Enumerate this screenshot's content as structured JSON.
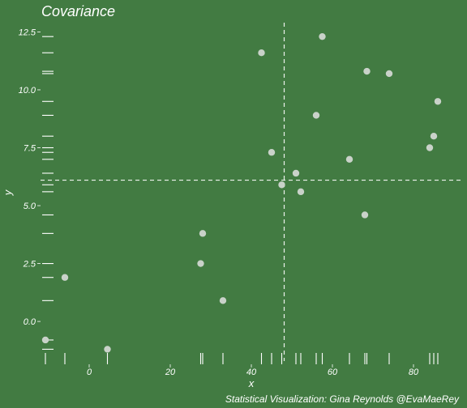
{
  "chart_data": {
    "type": "scatter",
    "title": "Covariance",
    "xlabel": "x",
    "ylabel": "y",
    "caption": "Statistical Visualization: Gina Reynolds @EvaMaeRey",
    "xlim": [
      -12,
      92
    ],
    "ylim": [
      -1.5,
      12.9
    ],
    "x_ticks": [
      0,
      20,
      40,
      60,
      80
    ],
    "y_ticks": [
      0.0,
      2.5,
      5.0,
      7.5,
      10.0,
      12.5
    ],
    "y_tick_labels": [
      "0.0",
      "2.5",
      "5.0",
      "7.5",
      "10.0",
      "12.5"
    ],
    "grid": false,
    "rug": true,
    "mean_x": 48.1,
    "mean_y": 6.1,
    "points": [
      {
        "x": -10.8,
        "y": -0.8
      },
      {
        "x": -6.0,
        "y": 1.9
      },
      {
        "x": 4.5,
        "y": -1.2
      },
      {
        "x": 27.5,
        "y": 2.5
      },
      {
        "x": 28.0,
        "y": 3.8
      },
      {
        "x": 33.0,
        "y": 0.9
      },
      {
        "x": 42.5,
        "y": 11.6
      },
      {
        "x": 45.0,
        "y": 7.3
      },
      {
        "x": 47.5,
        "y": 5.9
      },
      {
        "x": 51.0,
        "y": 6.4
      },
      {
        "x": 52.2,
        "y": 5.6
      },
      {
        "x": 56.0,
        "y": 8.9
      },
      {
        "x": 57.5,
        "y": 12.3
      },
      {
        "x": 64.2,
        "y": 7.0
      },
      {
        "x": 68.0,
        "y": 4.6
      },
      {
        "x": 68.5,
        "y": 10.8
      },
      {
        "x": 74.0,
        "y": 10.7
      },
      {
        "x": 84.0,
        "y": 7.5
      },
      {
        "x": 85.0,
        "y": 8.0
      },
      {
        "x": 86.0,
        "y": 9.5
      }
    ],
    "colors": {
      "background": "#427b42",
      "points": "#c9d2c9",
      "lines": "#ffffff"
    }
  }
}
